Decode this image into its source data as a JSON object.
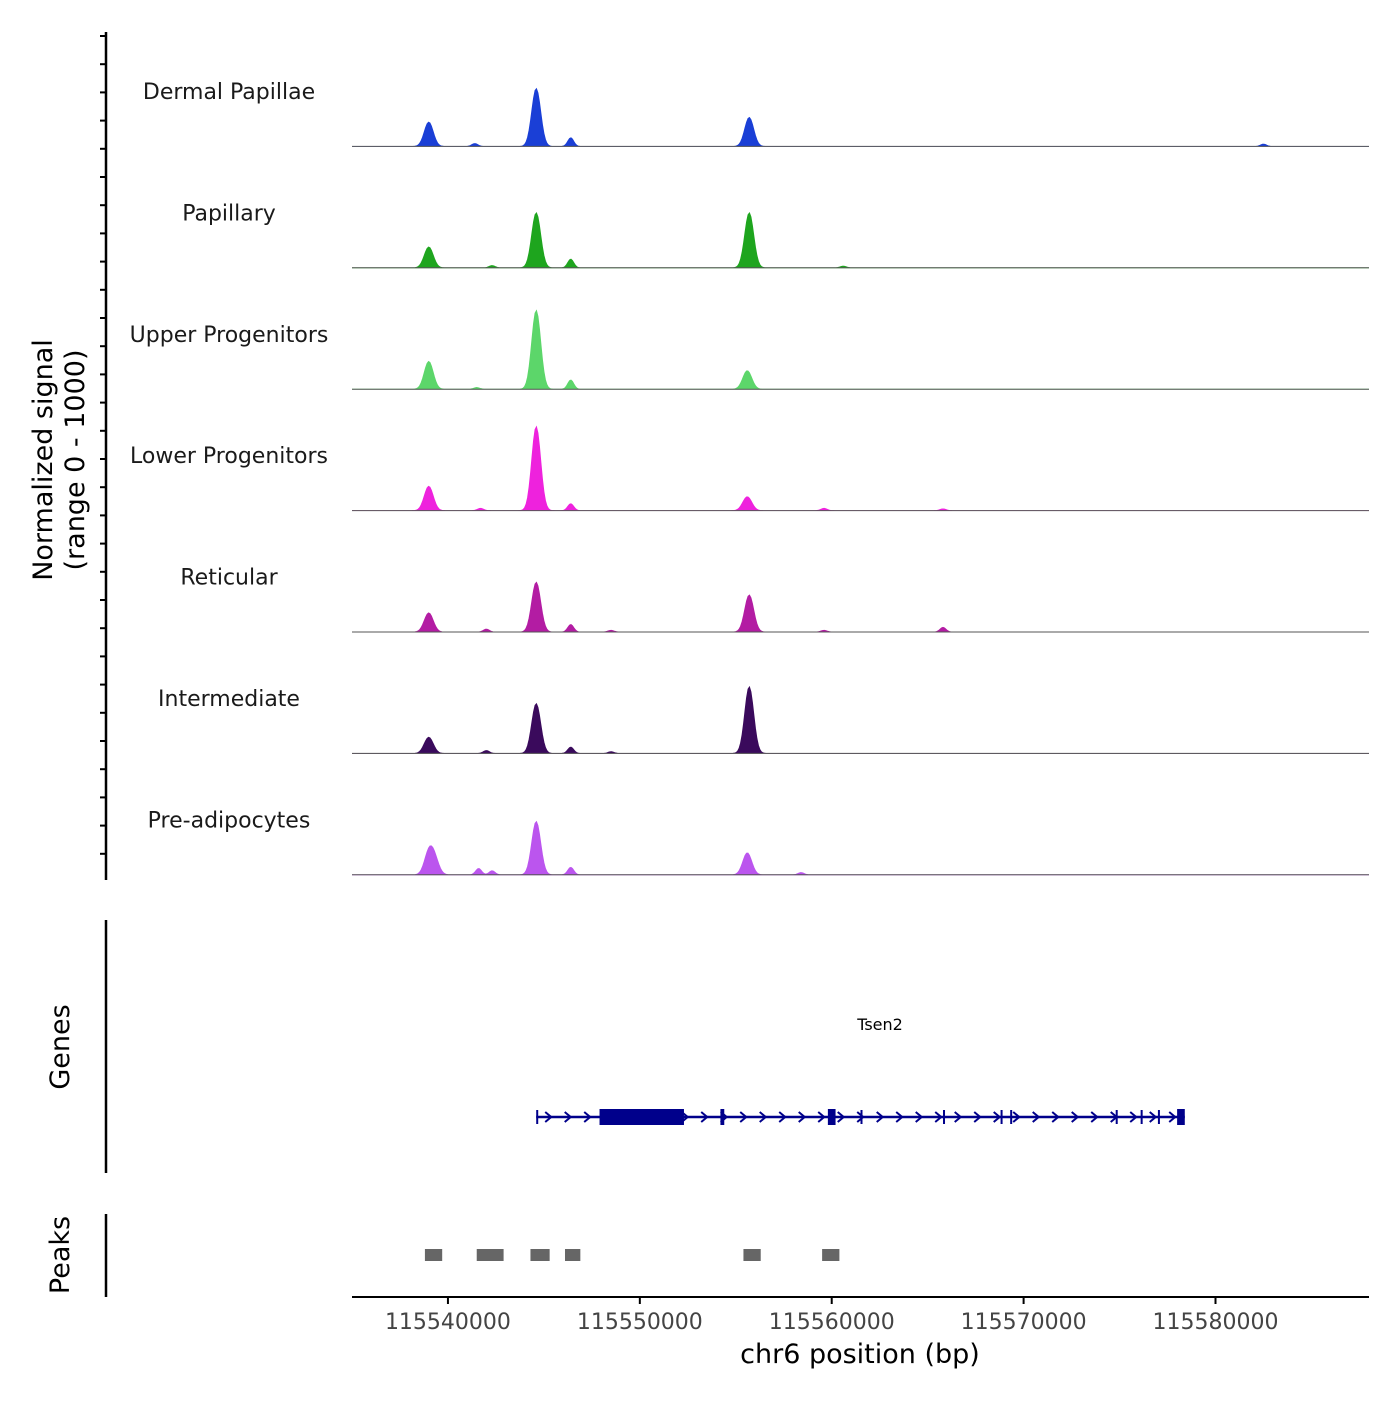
{
  "chart_data": {
    "type": "area",
    "title": "",
    "ylabel_line1": "Normalized signal",
    "ylabel_line2": "(range 0 - 1000)",
    "xlabel": "chr6 position (bp)",
    "xlim": [
      115535000,
      115588000
    ],
    "ylim": [
      0,
      1000
    ],
    "xticks": [
      115540000,
      115550000,
      115560000,
      115570000,
      115580000
    ],
    "xtick_labels": [
      "115540000",
      "115550000",
      "115560000",
      "115570000",
      "115580000"
    ],
    "tracks": [
      {
        "name": "Dermal Papillae",
        "color": "#1a3fd6",
        "peaks": [
          [
            115539000,
            0.42
          ],
          [
            115541400,
            0.05
          ],
          [
            115544600,
            1.0
          ],
          [
            115546400,
            0.15
          ],
          [
            115555700,
            0.5
          ],
          [
            115582500,
            0.04
          ]
        ]
      },
      {
        "name": "Papillary",
        "color": "#1ea51e",
        "peaks": [
          [
            115539000,
            0.36
          ],
          [
            115542300,
            0.04
          ],
          [
            115544600,
            0.95
          ],
          [
            115546400,
            0.15
          ],
          [
            115555700,
            0.95
          ],
          [
            115560600,
            0.03
          ]
        ]
      },
      {
        "name": "Upper Progenitors",
        "color": "#5cd66a",
        "peaks": [
          [
            115539000,
            0.48
          ],
          [
            115541500,
            0.03
          ],
          [
            115544600,
            1.36
          ],
          [
            115546400,
            0.16
          ],
          [
            115555600,
            0.32
          ]
        ]
      },
      {
        "name": "Lower Progenitors",
        "color": "#ee22dd",
        "peaks": [
          [
            115539000,
            0.42
          ],
          [
            115541700,
            0.04
          ],
          [
            115544600,
            1.45
          ],
          [
            115546400,
            0.12
          ],
          [
            115555600,
            0.24
          ],
          [
            115559600,
            0.04
          ],
          [
            115565800,
            0.03
          ]
        ]
      },
      {
        "name": "Reticular",
        "color": "#b31ca3",
        "peaks": [
          [
            115539000,
            0.33
          ],
          [
            115542000,
            0.05
          ],
          [
            115544600,
            0.86
          ],
          [
            115546400,
            0.13
          ],
          [
            115548500,
            0.03
          ],
          [
            115555700,
            0.64
          ],
          [
            115559600,
            0.03
          ],
          [
            115565800,
            0.08
          ]
        ]
      },
      {
        "name": "Intermediate",
        "color": "#3a0a5c",
        "peaks": [
          [
            115539000,
            0.28
          ],
          [
            115542000,
            0.05
          ],
          [
            115544600,
            0.86
          ],
          [
            115546400,
            0.11
          ],
          [
            115548500,
            0.03
          ],
          [
            115555700,
            1.15
          ]
        ]
      },
      {
        "name": "Pre-adipocytes",
        "color": "#bb55ee",
        "peaks": [
          [
            115539000,
            0.36
          ],
          [
            115539300,
            0.25
          ],
          [
            115541600,
            0.11
          ],
          [
            115542300,
            0.07
          ],
          [
            115544600,
            0.92
          ],
          [
            115546400,
            0.13
          ],
          [
            115555600,
            0.38
          ],
          [
            115558400,
            0.04
          ]
        ]
      }
    ],
    "genes_label": "Genes",
    "gene": {
      "name": "Tsen2",
      "strand": "+",
      "color": "#00008b",
      "start": 115544600,
      "end": 115578400,
      "exons": [
        [
          115544600,
          115544700
        ],
        [
          115547900,
          115552300
        ],
        [
          115554200,
          115554400
        ],
        [
          115559800,
          115560200
        ],
        [
          115561500,
          115561560
        ],
        [
          115565800,
          115565850
        ],
        [
          115568800,
          115568870
        ],
        [
          115569300,
          115569360
        ],
        [
          115574800,
          115574900
        ],
        [
          115576100,
          115576170
        ],
        [
          115577000,
          115577060
        ],
        [
          115578000,
          115578400
        ]
      ]
    },
    "peaks_label": "Peaks",
    "peak_color": "#666666",
    "peak_regions": [
      [
        115538800,
        115539700
      ],
      [
        115541500,
        115542900
      ],
      [
        115544300,
        115545300
      ],
      [
        115546100,
        115546900
      ],
      [
        115555400,
        115556300
      ],
      [
        115559500,
        115560400
      ]
    ]
  }
}
